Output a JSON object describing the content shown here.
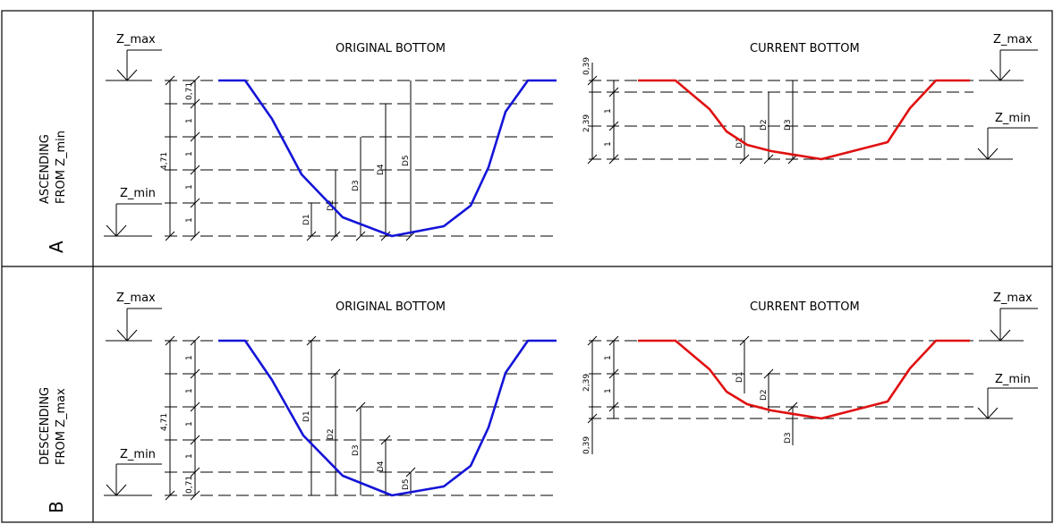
{
  "rows": [
    {
      "letter": "A",
      "side_line1": "ASCENDING",
      "side_line2": "FROM Z_min",
      "original": {
        "title": "ORIGINAL BOTTOM",
        "z_max": "Z_max",
        "z_min": "Z_min",
        "total": "4,71",
        "steps": [
          "0,71",
          "1",
          "1",
          "1",
          "1"
        ],
        "d_labels": [
          "D1",
          "D2",
          "D3",
          "D4",
          "D5"
        ]
      },
      "current": {
        "title": "CURRENT BOTTOM",
        "z_max": "Z_max",
        "z_min": "Z_min",
        "total": "2,39",
        "offset": "0,39",
        "steps": [
          "1",
          "1"
        ],
        "d_labels": [
          "D1",
          "D2",
          "D3"
        ]
      }
    },
    {
      "letter": "B",
      "side_line1": "DESCENDING",
      "side_line2": "FROM Z_max",
      "original": {
        "title": "ORIGINAL BOTTOM",
        "z_max": "Z_max",
        "z_min": "Z_min",
        "total": "4,71",
        "steps": [
          "1",
          "1",
          "1",
          "1",
          "0,71"
        ],
        "d_labels": [
          "D1",
          "D2",
          "D3",
          "D4",
          "D5"
        ]
      },
      "current": {
        "title": "CURRENT BOTTOM",
        "z_max": "Z_max",
        "z_min": "Z_min",
        "total": "2,39",
        "offset": "0,39",
        "steps": [
          "1",
          "1"
        ],
        "d_labels": [
          "D1",
          "D2",
          "D3"
        ]
      }
    }
  ],
  "colors": {
    "original_profile": "#1414d8",
    "current_profile": "#e01010"
  }
}
